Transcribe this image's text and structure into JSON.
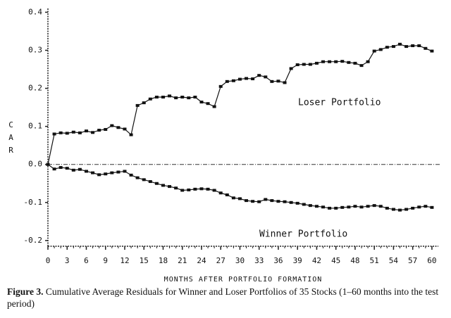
{
  "chart_data": {
    "type": "line",
    "y_label": "CAR",
    "x_label": "MONTHS AFTER PORTFOLIO FORMATION",
    "annotations": [
      "Loser Portfolio",
      "Winner Portfolio"
    ],
    "caption_label": "Figure 3.",
    "caption": "Cumulative Average Residuals for Winner and Loser Portfolios of 35 Stocks (1–60 months into the test period)",
    "x": [
      0,
      1,
      2,
      3,
      4,
      5,
      6,
      7,
      8,
      9,
      10,
      11,
      12,
      13,
      14,
      15,
      16,
      17,
      18,
      19,
      20,
      21,
      22,
      23,
      24,
      25,
      26,
      27,
      28,
      29,
      30,
      31,
      32,
      33,
      34,
      35,
      36,
      37,
      38,
      39,
      40,
      41,
      42,
      43,
      44,
      45,
      46,
      47,
      48,
      49,
      50,
      51,
      52,
      53,
      54,
      55,
      56,
      57,
      58,
      59,
      60
    ],
    "series": [
      {
        "name": "Loser Portfolio",
        "color": "#111111",
        "values": [
          0,
          0.08,
          0.083,
          0.082,
          0.085,
          0.083,
          0.088,
          0.084,
          0.09,
          0.092,
          0.102,
          0.097,
          0.093,
          0.078,
          0.155,
          0.162,
          0.172,
          0.177,
          0.177,
          0.18,
          0.175,
          0.177,
          0.175,
          0.177,
          0.164,
          0.16,
          0.152,
          0.205,
          0.218,
          0.22,
          0.224,
          0.226,
          0.225,
          0.234,
          0.23,
          0.218,
          0.219,
          0.215,
          0.252,
          0.262,
          0.263,
          0.263,
          0.266,
          0.27,
          0.27,
          0.27,
          0.271,
          0.268,
          0.266,
          0.26,
          0.27,
          0.298,
          0.302,
          0.308,
          0.31,
          0.316,
          0.31,
          0.312,
          0.312,
          0.305,
          0.298
        ]
      },
      {
        "name": "Winner Portfolio",
        "color": "#111111",
        "values": [
          0,
          -0.012,
          -0.008,
          -0.01,
          -0.015,
          -0.013,
          -0.018,
          -0.022,
          -0.027,
          -0.025,
          -0.022,
          -0.02,
          -0.018,
          -0.028,
          -0.035,
          -0.04,
          -0.045,
          -0.05,
          -0.055,
          -0.058,
          -0.062,
          -0.068,
          -0.067,
          -0.065,
          -0.064,
          -0.065,
          -0.068,
          -0.075,
          -0.08,
          -0.088,
          -0.09,
          -0.095,
          -0.097,
          -0.098,
          -0.092,
          -0.095,
          -0.097,
          -0.098,
          -0.1,
          -0.102,
          -0.105,
          -0.108,
          -0.11,
          -0.112,
          -0.115,
          -0.115,
          -0.113,
          -0.112,
          -0.11,
          -0.112,
          -0.11,
          -0.108,
          -0.11,
          -0.115,
          -0.118,
          -0.12,
          -0.118,
          -0.115,
          -0.112,
          -0.11,
          -0.113
        ]
      }
    ],
    "xlim": [
      0,
      61
    ],
    "xticks": [
      0,
      3,
      6,
      9,
      12,
      15,
      18,
      21,
      24,
      27,
      30,
      33,
      36,
      39,
      42,
      45,
      48,
      51,
      54,
      57,
      60
    ],
    "ylim": [
      -0.215,
      0.41
    ],
    "yticks": [
      0.4,
      0.3,
      0.2,
      0.1,
      {
        "value": 0,
        "label": "0.0"
      },
      -0.1,
      -0.2
    ]
  }
}
